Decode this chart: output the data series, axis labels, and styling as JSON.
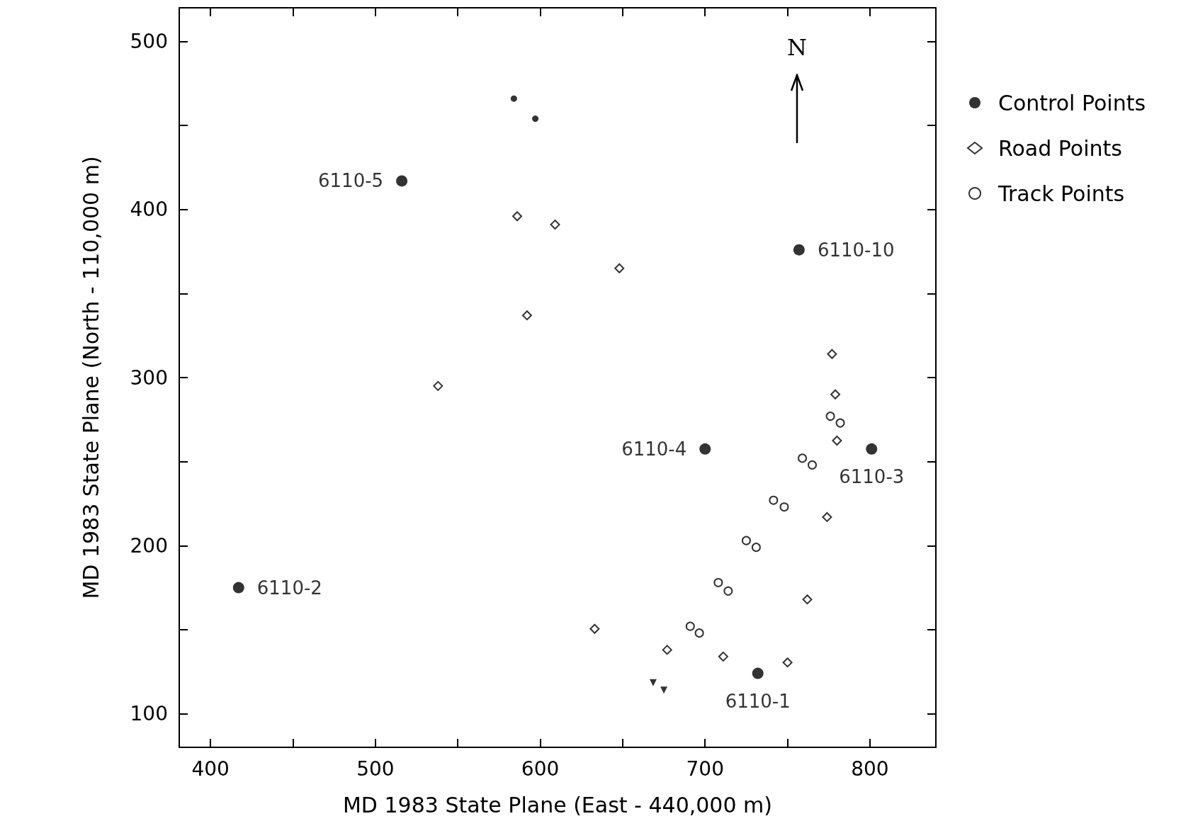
{
  "chart_data": {
    "type": "scatter",
    "xlabel": "MD 1983 State Plane (East - 440,000 m)",
    "ylabel": "MD 1983 State Plane (North - 110,000 m)",
    "annotations": [
      "N"
    ],
    "xlim": [
      381,
      840
    ],
    "ylim": [
      80,
      520
    ],
    "xticks": [
      400,
      {
        "value": 450,
        "label": null
      },
      500,
      {
        "value": 550,
        "label": null
      },
      600,
      {
        "value": 650,
        "label": null
      },
      700,
      {
        "value": 750,
        "label": null
      },
      800
    ],
    "yticks": [
      100,
      {
        "value": 150,
        "label": null
      },
      200,
      {
        "value": 250,
        "label": null
      },
      300,
      {
        "value": 350,
        "label": null
      },
      400,
      {
        "value": 450,
        "label": null
      },
      500
    ],
    "grid": false,
    "legend": "right",
    "series": [
      {
        "name": "Control Points",
        "color": "#000000",
        "marker": "circle",
        "x": [
          516,
          757,
          700,
          801,
          417,
          732
        ],
        "values": [
          417,
          376,
          257.5,
          257.5,
          175,
          124
        ],
        "value_labels": [
          "6110-5",
          "6110-10",
          "6110-4",
          "6110-3",
          "6110-2",
          "6110-1"
        ]
      },
      {
        "name": "Road Points",
        "color": "#000000",
        "marker": "diamond",
        "x": [
          586,
          609,
          648,
          592,
          538,
          777,
          779,
          780,
          774,
          762,
          750,
          711,
          677,
          633
        ],
        "values": [
          396,
          391,
          365,
          337,
          295,
          314,
          290,
          262.5,
          217,
          168,
          130.5,
          134,
          138,
          150.5
        ]
      },
      {
        "name": "Track Points",
        "color": "#000000",
        "marker": "circle",
        "x": [
          776,
          782,
          759,
          765,
          741.5,
          748,
          725,
          731,
          708,
          714,
          691,
          696.5
        ],
        "values": [
          277,
          273,
          252,
          248,
          227,
          223,
          203,
          199,
          178,
          173,
          152,
          148
        ]
      },
      {
        "color": "#000000",
        "marker": "circle",
        "x": [
          584,
          597
        ],
        "values": [
          466,
          454
        ]
      },
      {
        "color": "#000000",
        "marker": "triangle",
        "x": [
          668.5,
          675
        ],
        "values": [
          118.5,
          114
        ]
      }
    ]
  }
}
